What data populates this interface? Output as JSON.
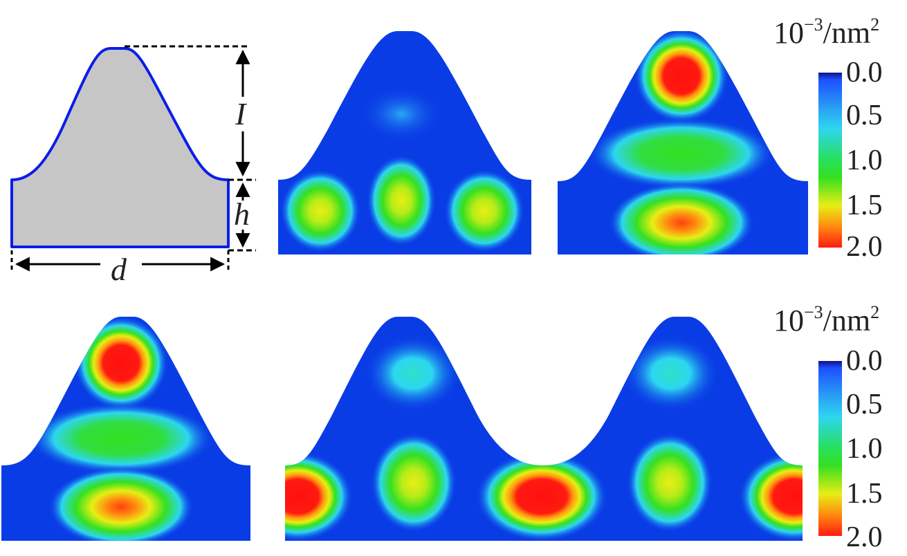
{
  "schematic": {
    "labels": {
      "I": "I",
      "h": "h",
      "d": "d"
    }
  },
  "colorbars": [
    {
      "unit_main": "10",
      "unit_exp": "−3",
      "unit_tail": "/nm",
      "unit_sq": "2",
      "ticks": [
        "0.0",
        "0.5",
        "1.0",
        "1.5",
        "2.0"
      ]
    },
    {
      "unit_main": "10",
      "unit_exp": "−3",
      "unit_tail": "/nm",
      "unit_sq": "2",
      "ticks": [
        "0.0",
        "0.5",
        "1.0",
        "1.5",
        "2.0"
      ]
    }
  ],
  "colors": {
    "background_field": "#0a3ce6",
    "outline": "#0a1ee8",
    "fill_gray": "#c6c6c6",
    "colormap": [
      "#1010b0",
      "#1d4fff",
      "#2dd6f0",
      "#27e05a",
      "#34e020",
      "#e8ee14",
      "#ff8a10",
      "#ff1a10"
    ]
  }
}
